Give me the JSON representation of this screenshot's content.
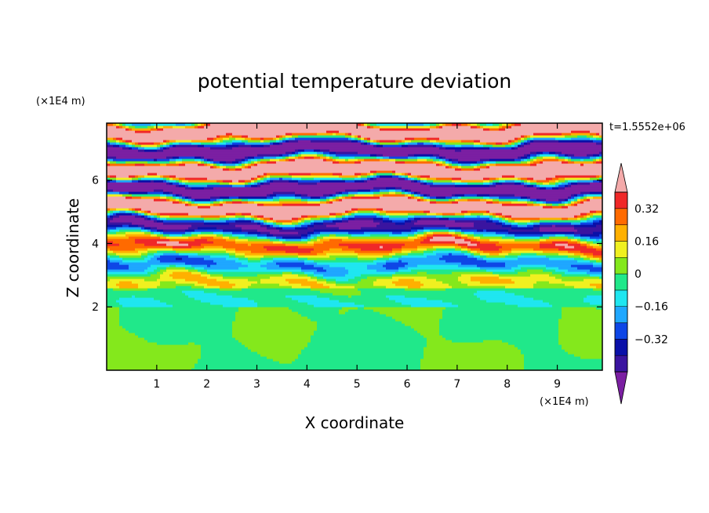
{
  "chart_data": {
    "type": "heatmap",
    "title": "potential temperature deviation",
    "xlabel": "X coordinate",
    "ylabel": "Z coordinate",
    "x_unit": "(×1E4 m)",
    "y_unit": "(×1E4 m)",
    "time_label": "t=1.5552e+06",
    "xlim": [
      0,
      9.9
    ],
    "ylim": [
      0,
      7.8
    ],
    "x_ticks": [
      1,
      2,
      3,
      4,
      5,
      6,
      7,
      8,
      9
    ],
    "y_ticks": [
      2,
      4,
      6
    ],
    "colorbar": {
      "levels": [
        -0.48,
        -0.4,
        -0.32,
        -0.24,
        -0.16,
        -0.08,
        0,
        0.08,
        0.16,
        0.24,
        0.32,
        0.4
      ],
      "colors": [
        "#7b1fa2",
        "#3a14a0",
        "#0a10a8",
        "#0e46e6",
        "#1fa7ff",
        "#1fe6f0",
        "#20e88a",
        "#84e81c",
        "#f0f020",
        "#ffb000",
        "#ff6a00",
        "#f02828",
        "#f4aaaa"
      ],
      "tick_labels": [
        "0.32",
        "0.16",
        "0",
        "−0.16",
        "−0.32"
      ],
      "tick_values": [
        0.32,
        0.16,
        0,
        -0.16,
        -0.32
      ],
      "extend": "both"
    }
  }
}
